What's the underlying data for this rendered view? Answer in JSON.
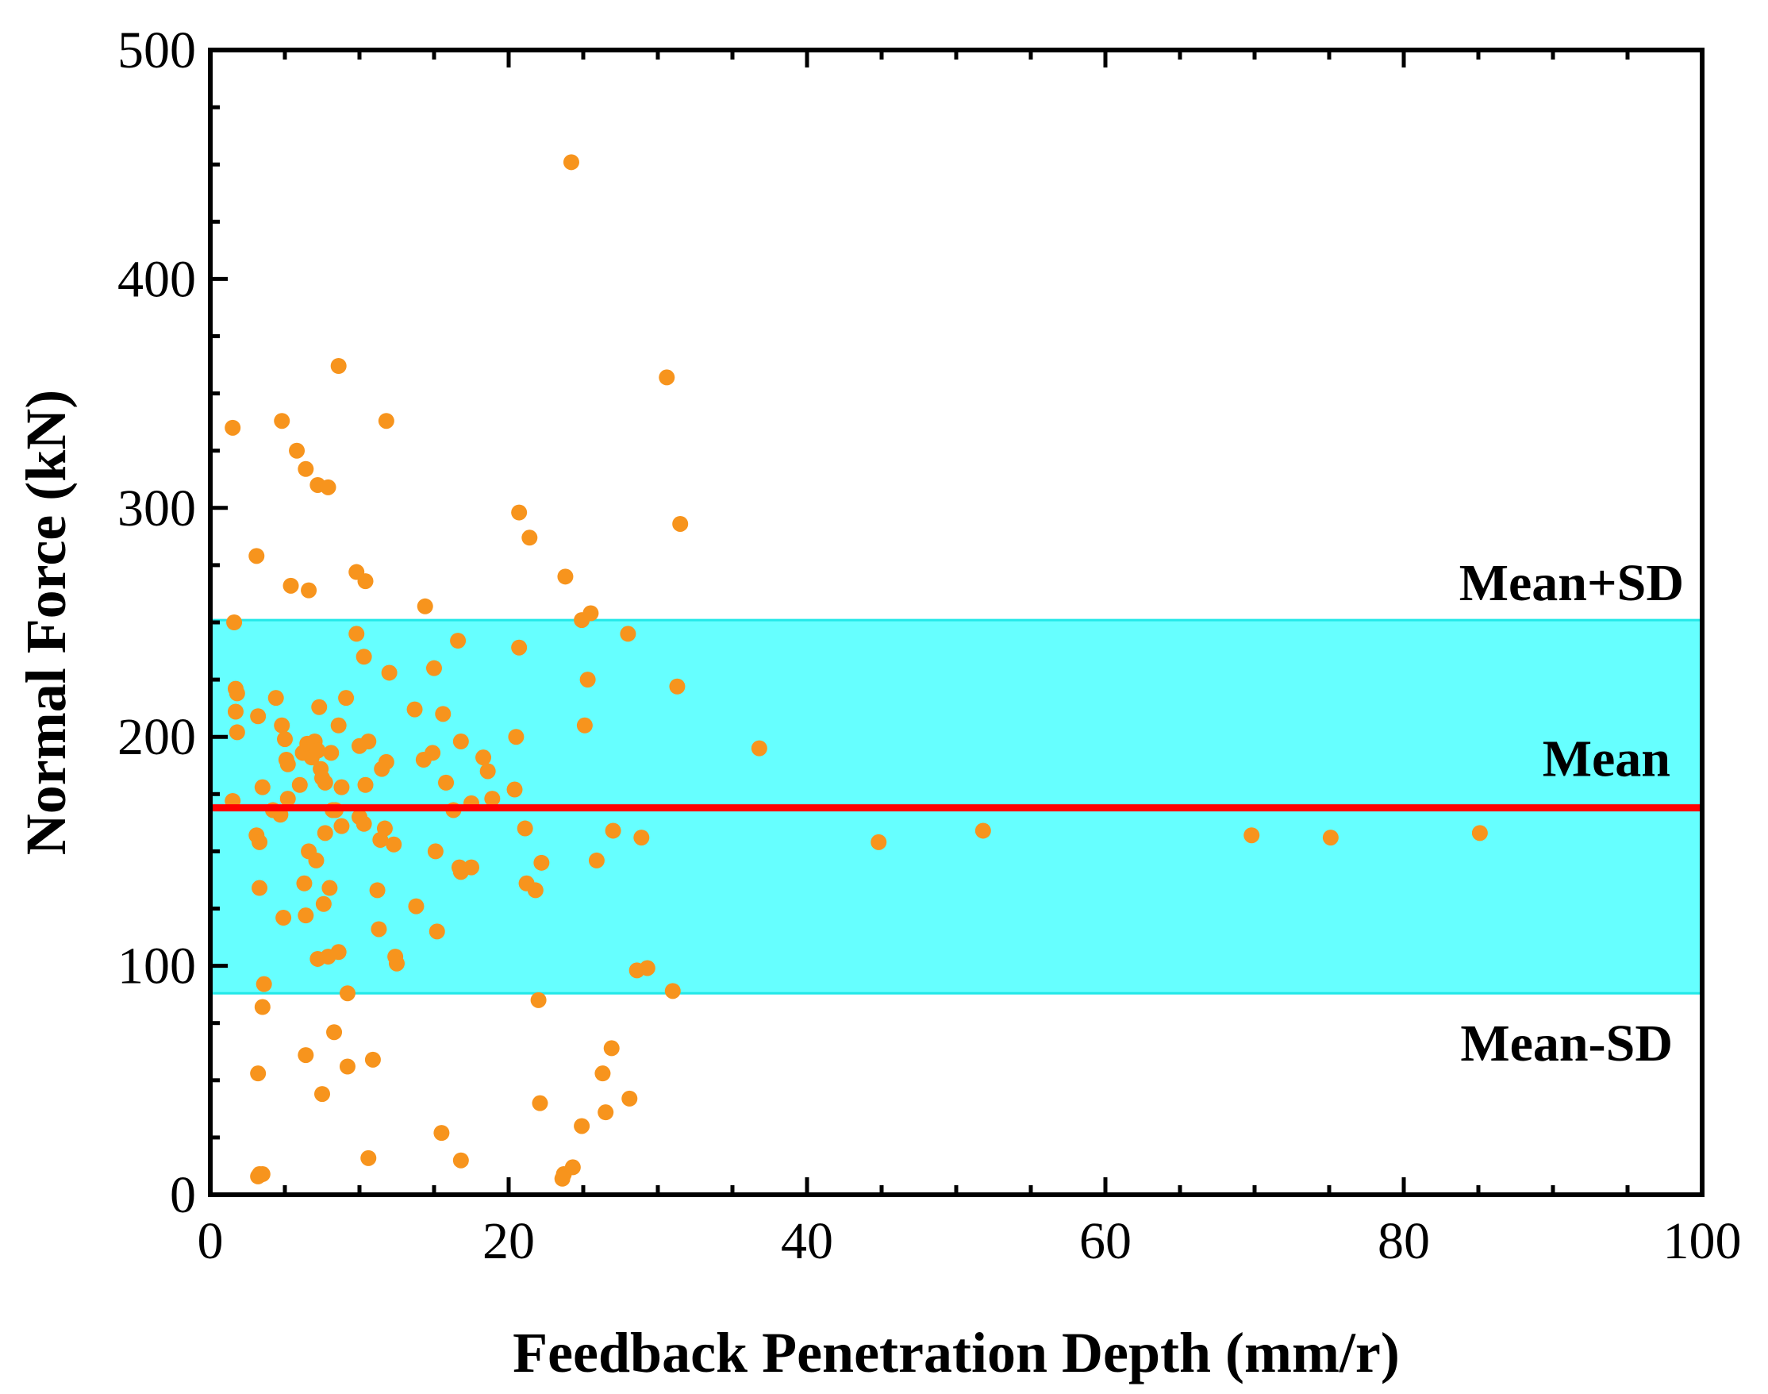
{
  "chart_data": {
    "type": "scatter",
    "title": "",
    "xlabel": "Feedback Penetration Depth (mm/r)",
    "ylabel": "Normal Force (kN)",
    "xlim": [
      0,
      100
    ],
    "ylim": [
      0,
      500
    ],
    "x_ticks": [
      0,
      20,
      40,
      60,
      80,
      100
    ],
    "y_ticks": [
      0,
      100,
      200,
      300,
      400,
      500
    ],
    "x_tick_labels": [
      "0",
      "20",
      "40",
      "60",
      "80",
      "100"
    ],
    "y_tick_labels": [
      "0",
      "100",
      "200",
      "300",
      "400",
      "500"
    ],
    "grid": false,
    "mean": 169,
    "mean_plus_sd": 251,
    "mean_minus_sd": 88,
    "labels": {
      "mean": "Mean",
      "mean_plus_sd": "Mean+SD",
      "mean_minus_sd": "Mean-SD"
    },
    "colors": {
      "points": "#F7941D",
      "mean_line": "#FF0000",
      "band_fill": "#66FFFF",
      "band_edge": "#22E8E8",
      "axis": "#000000"
    },
    "series": [
      {
        "name": "Normal Force",
        "points": [
          [
            1.5,
            335
          ],
          [
            4.8,
            338
          ],
          [
            5.8,
            325
          ],
          [
            6.4,
            317
          ],
          [
            7.2,
            310
          ],
          [
            7.9,
            309
          ],
          [
            8.6,
            362
          ],
          [
            11.8,
            338
          ],
          [
            1.6,
            250
          ],
          [
            3.1,
            279
          ],
          [
            5.4,
            266
          ],
          [
            6.6,
            264
          ],
          [
            9.8,
            272
          ],
          [
            10.4,
            268
          ],
          [
            14.4,
            257
          ],
          [
            1.7,
            221
          ],
          [
            1.8,
            219
          ],
          [
            1.7,
            211
          ],
          [
            1.8,
            202
          ],
          [
            3.2,
            209
          ],
          [
            4.4,
            217
          ],
          [
            4.8,
            205
          ],
          [
            5.0,
            199
          ],
          [
            5.1,
            190
          ],
          [
            5.2,
            188
          ],
          [
            4.2,
            168
          ],
          [
            4.7,
            166
          ],
          [
            5.2,
            173
          ],
          [
            6.0,
            179
          ],
          [
            6.2,
            193
          ],
          [
            6.5,
            197
          ],
          [
            6.8,
            191
          ],
          [
            7.0,
            198
          ],
          [
            7.2,
            194
          ],
          [
            7.3,
            213
          ],
          [
            7.4,
            186
          ],
          [
            7.5,
            182
          ],
          [
            7.7,
            180
          ],
          [
            8.1,
            193
          ],
          [
            8.4,
            168
          ],
          [
            8.6,
            205
          ],
          [
            8.8,
            178
          ],
          [
            9.1,
            217
          ],
          [
            9.8,
            245
          ],
          [
            10.0,
            196
          ],
          [
            10.3,
            235
          ],
          [
            10.4,
            179
          ],
          [
            10.6,
            198
          ],
          [
            11.5,
            186
          ],
          [
            11.8,
            189
          ],
          [
            12.0,
            228
          ],
          [
            13.7,
            212
          ],
          [
            14.3,
            190
          ],
          [
            14.9,
            193
          ],
          [
            15.0,
            230
          ],
          [
            15.6,
            210
          ],
          [
            15.8,
            180
          ],
          [
            16.6,
            242
          ],
          [
            16.8,
            198
          ],
          [
            18.3,
            191
          ],
          [
            18.6,
            185
          ],
          [
            18.9,
            173
          ],
          [
            20.4,
            177
          ],
          [
            20.5,
            200
          ],
          [
            20.7,
            239
          ],
          [
            21.1,
            160
          ],
          [
            21.2,
            136
          ],
          [
            21.8,
            133
          ],
          [
            1.5,
            172
          ],
          [
            3.1,
            157
          ],
          [
            3.3,
            154
          ],
          [
            3.5,
            178
          ],
          [
            4.9,
            121
          ],
          [
            6.3,
            136
          ],
          [
            6.4,
            122
          ],
          [
            6.6,
            150
          ],
          [
            7.1,
            146
          ],
          [
            7.2,
            103
          ],
          [
            7.6,
            127
          ],
          [
            7.7,
            158
          ],
          [
            7.9,
            104
          ],
          [
            8.0,
            134
          ],
          [
            8.2,
            168
          ],
          [
            8.6,
            106
          ],
          [
            8.8,
            161
          ],
          [
            9.2,
            88
          ],
          [
            10.0,
            165
          ],
          [
            10.3,
            162
          ],
          [
            11.2,
            133
          ],
          [
            11.3,
            116
          ],
          [
            11.4,
            155
          ],
          [
            11.7,
            160
          ],
          [
            12.3,
            153
          ],
          [
            12.4,
            104
          ],
          [
            12.5,
            101
          ],
          [
            13.8,
            126
          ],
          [
            15.1,
            150
          ],
          [
            15.2,
            115
          ],
          [
            16.3,
            168
          ],
          [
            16.7,
            143
          ],
          [
            16.8,
            141
          ],
          [
            17.5,
            143
          ],
          [
            17.5,
            171
          ],
          [
            3.3,
            134
          ],
          [
            3.6,
            92
          ],
          [
            3.5,
            82
          ],
          [
            22.2,
            145
          ],
          [
            22.0,
            85
          ],
          [
            23.8,
            270
          ],
          [
            20.7,
            298
          ],
          [
            21.4,
            287
          ],
          [
            24.9,
            251
          ],
          [
            25.5,
            254
          ],
          [
            25.3,
            225
          ],
          [
            25.1,
            205
          ],
          [
            25.9,
            146
          ],
          [
            27.0,
            159
          ],
          [
            28.0,
            245
          ],
          [
            28.9,
            156
          ],
          [
            28.6,
            98
          ],
          [
            29.3,
            99
          ],
          [
            31.0,
            89
          ],
          [
            31.3,
            222
          ],
          [
            31.5,
            293
          ],
          [
            30.6,
            357
          ],
          [
            24.2,
            451
          ],
          [
            36.8,
            195
          ],
          [
            44.8,
            154
          ],
          [
            51.8,
            159
          ],
          [
            69.8,
            157
          ],
          [
            75.1,
            156
          ],
          [
            85.1,
            158
          ],
          [
            3.2,
            53
          ],
          [
            3.3,
            9
          ],
          [
            3.5,
            9
          ],
          [
            3.2,
            8
          ],
          [
            6.4,
            61
          ],
          [
            7.5,
            44
          ],
          [
            8.3,
            71
          ],
          [
            9.2,
            56
          ],
          [
            10.9,
            59
          ],
          [
            10.6,
            16
          ],
          [
            15.5,
            27
          ],
          [
            16.8,
            15
          ],
          [
            22.1,
            40
          ],
          [
            24.9,
            30
          ],
          [
            23.7,
            9
          ],
          [
            23.6,
            7
          ],
          [
            24.3,
            12
          ],
          [
            26.3,
            53
          ],
          [
            26.5,
            36
          ],
          [
            26.9,
            64
          ],
          [
            28.1,
            42
          ]
        ]
      }
    ]
  }
}
